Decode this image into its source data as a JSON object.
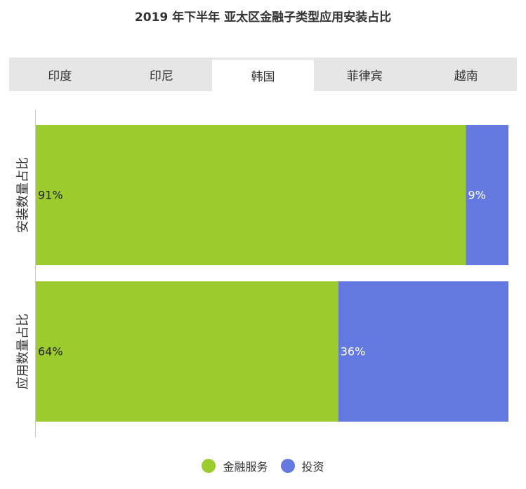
{
  "title": "2019 年下半年 亚太区金融子类型应用安装占比",
  "tabs": [
    {
      "label": "印度",
      "active": false
    },
    {
      "label": "印尼",
      "active": false
    },
    {
      "label": "韩国",
      "active": true
    },
    {
      "label": "菲律宾",
      "active": false
    },
    {
      "label": "越南",
      "active": false
    }
  ],
  "colors": {
    "series1": "#9ccb2d",
    "series2": "#6479e0"
  },
  "chart_data": {
    "type": "bar",
    "orientation": "horizontal",
    "stacked": true,
    "percent": true,
    "categories": [
      "安装数量占比",
      "应用数量占比"
    ],
    "series": [
      {
        "name": "金融服务",
        "values": [
          91,
          64
        ],
        "labels": [
          "91%",
          "64%"
        ]
      },
      {
        "name": "投资",
        "values": [
          9,
          36
        ],
        "labels": [
          "9%",
          "36%"
        ]
      }
    ],
    "xlim": [
      0,
      100
    ],
    "legend_position": "bottom",
    "grid": false
  }
}
